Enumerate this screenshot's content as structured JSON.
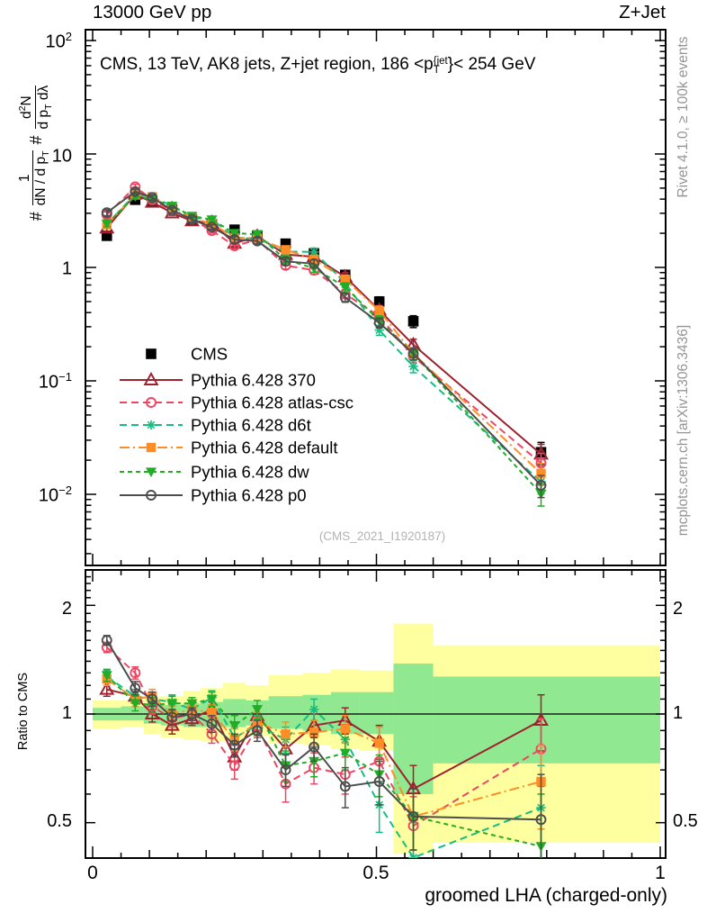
{
  "header": {
    "title_left": "13000 GeV pp",
    "title_right": "Z+Jet"
  },
  "annotation": {
    "prefix": "CMS, 13 TeV, AK8 jets, Z+jet region, 186 <p",
    "sup": "{jet",
    "sub": "T",
    "suffix": "}< 254 GeV"
  },
  "sidebar_right": {
    "top": "Rivet 4.1.0, ≥ 100k events",
    "bottom": "mcplots.cern.ch [arXiv:1306.3436]"
  },
  "watermark": "(CMS_2021_I1920187)",
  "axes": {
    "xlabel": "groomed LHA (charged-only)",
    "ratio_ylabel": "Ratio to CMS",
    "ylabel": {
      "hash1": "#",
      "f1num": "1",
      "f1den_main": "dN / d p",
      "f1den_sub": "T",
      "hash2": "#",
      "f2num_d": "d",
      "f2num_sup": "2",
      "f2num_N": "N",
      "f2den_main": "d p",
      "f2den_sub": "T",
      "f2den_tail": " dλ"
    },
    "x_ticks": [
      {
        "v": 0,
        "label": "0"
      },
      {
        "v": 0.5,
        "label": "0.5"
      },
      {
        "v": 1,
        "label": "1"
      }
    ],
    "y_ticks": [
      {
        "v": 100,
        "base": "10",
        "exp": "2"
      },
      {
        "v": 10,
        "base": "10",
        "exp": ""
      },
      {
        "v": 1,
        "base": "1",
        "exp": ""
      },
      {
        "v": 0.1,
        "base": "10",
        "exp": "−1"
      },
      {
        "v": 0.01,
        "base": "10",
        "exp": "−2"
      }
    ],
    "ratio_ticks": [
      {
        "v": 2,
        "label": "2"
      },
      {
        "v": 1,
        "label": "1"
      },
      {
        "v": 0.5,
        "label": "0.5"
      }
    ]
  },
  "chart_data": {
    "type": "line",
    "xlabel": "groomed LHA (charged-only)",
    "xlim": [
      0,
      1
    ],
    "x": [
      0.025,
      0.075,
      0.105,
      0.14,
      0.175,
      0.21,
      0.25,
      0.29,
      0.34,
      0.39,
      0.445,
      0.505,
      0.565,
      0.79
    ],
    "bin_edges": [
      0,
      0.05,
      0.09,
      0.12,
      0.16,
      0.19,
      0.23,
      0.27,
      0.31,
      0.37,
      0.42,
      0.47,
      0.53,
      0.6,
      1.0
    ],
    "main_panel": {
      "ylog": true,
      "ylim": [
        0.0024,
        124
      ],
      "ylabel": "# 1/(dN/dp_T) # d2N/(dp_T dlambda)",
      "grid": false
    },
    "ratio_panel": {
      "ylog": true,
      "ylim": [
        0.4,
        2.49
      ],
      "ylabel": "Ratio to CMS",
      "bands": {
        "yellow_color": "#feff9e",
        "green_color": "#90e890",
        "yellow_lo": [
          0.91,
          0.92,
          0.88,
          0.86,
          0.85,
          0.84,
          0.84,
          0.87,
          0.83,
          0.82,
          0.8,
          0.79,
          0.41,
          0.44
        ],
        "yellow_hi": [
          1.09,
          1.09,
          1.12,
          1.12,
          1.16,
          1.18,
          1.22,
          1.2,
          1.28,
          1.3,
          1.33,
          1.32,
          1.78,
          1.55
        ],
        "green_lo": [
          0.96,
          0.96,
          0.94,
          0.93,
          0.92,
          0.92,
          0.92,
          0.93,
          0.91,
          0.9,
          0.88,
          0.88,
          0.6,
          0.73
        ],
        "green_hi": [
          1.04,
          1.05,
          1.06,
          1.06,
          1.07,
          1.08,
          1.1,
          1.09,
          1.12,
          1.13,
          1.15,
          1.15,
          1.38,
          1.27
        ]
      }
    },
    "err_frac": [
      0.06,
      0.05,
      0.05,
      0.05,
      0.05,
      0.05,
      0.06,
      0.06,
      0.07,
      0.08,
      0.09,
      0.1,
      0.12,
      0.22
    ],
    "ratio_err": [
      0.05,
      0.05,
      0.05,
      0.05,
      0.04,
      0.05,
      0.06,
      0.06,
      0.07,
      0.07,
      0.08,
      0.09,
      0.1,
      0.17
    ],
    "legend_position": "middle-left",
    "series": [
      {
        "name": "CMS",
        "kind": "data",
        "color": "#000000",
        "line": "none",
        "marker": "square-filled",
        "values": [
          1.9,
          3.95,
          3.75,
          3.25,
          2.65,
          2.4,
          2.15,
          1.9,
          1.62,
          1.33,
          0.86,
          0.5,
          0.335,
          0.0235
        ]
      },
      {
        "name": "Pythia 6.428 370",
        "kind": "mc",
        "color": "#9e2130",
        "line": "solid",
        "marker": "triangle-open",
        "values": [
          2.22,
          4.42,
          3.75,
          3.02,
          2.57,
          2.47,
          1.63,
          1.88,
          1.3,
          1.24,
          0.826,
          0.42,
          0.208,
          0.0226
        ],
        "ratio": [
          1.17,
          1.12,
          1.0,
          0.93,
          0.97,
          1.03,
          0.76,
          0.99,
          0.8,
          0.93,
          0.96,
          0.84,
          0.62,
          0.96
        ]
      },
      {
        "name": "Pythia 6.428 atlas-csc",
        "kind": "mc",
        "color": "#ee4662",
        "line": "dash",
        "marker": "circle-open",
        "values": [
          2.91,
          5.14,
          3.94,
          3.15,
          2.65,
          2.11,
          1.55,
          1.75,
          1.04,
          0.944,
          0.585,
          0.37,
          0.164,
          0.0188
        ],
        "ratio": [
          1.53,
          1.3,
          1.05,
          0.97,
          1.0,
          0.88,
          0.72,
          0.92,
          0.64,
          0.71,
          0.68,
          0.74,
          0.49,
          0.8
        ]
      },
      {
        "name": "Pythia 6.428 d6t",
        "kind": "mc",
        "color": "#17bd80",
        "line": "dash",
        "marker": "asterisk",
        "values": [
          2.41,
          4.42,
          4.13,
          3.51,
          2.73,
          2.66,
          1.85,
          1.77,
          1.38,
          1.37,
          0.731,
          0.28,
          0.134,
          0.0129
        ],
        "ratio": [
          1.27,
          1.12,
          1.1,
          1.08,
          1.03,
          1.11,
          0.86,
          0.93,
          0.85,
          1.03,
          0.85,
          0.56,
          0.4,
          0.55
        ]
      },
      {
        "name": "Pythia 6.428 default",
        "kind": "mc",
        "color": "#ff8d26",
        "line": "dashdot",
        "marker": "square-filled",
        "values": [
          2.38,
          4.35,
          4.2,
          3.25,
          2.73,
          2.42,
          1.83,
          1.81,
          1.43,
          1.18,
          0.783,
          0.415,
          0.174,
          0.0153
        ],
        "ratio": [
          1.25,
          1.1,
          1.12,
          1.0,
          1.03,
          1.01,
          0.85,
          0.95,
          0.88,
          0.89,
          0.91,
          0.83,
          0.52,
          0.65
        ]
      },
      {
        "name": "Pythia 6.428 dw",
        "kind": "mc",
        "color": "#23ac26",
        "line": "dash2",
        "marker": "triangle-down-filled",
        "values": [
          2.43,
          4.23,
          3.98,
          3.48,
          2.84,
          2.64,
          2.0,
          1.96,
          1.17,
          0.984,
          0.671,
          0.34,
          0.174,
          0.0101
        ],
        "ratio": [
          1.28,
          1.07,
          1.06,
          1.07,
          1.07,
          1.1,
          0.93,
          1.03,
          0.72,
          0.74,
          0.78,
          0.68,
          0.52,
          0.43
        ]
      },
      {
        "name": "Pythia 6.428 p0",
        "kind": "mc",
        "color": "#4d4d4d",
        "line": "solid",
        "marker": "circle-open",
        "values": [
          3.04,
          4.66,
          4.13,
          3.19,
          2.65,
          2.26,
          1.76,
          1.71,
          1.13,
          1.08,
          0.542,
          0.325,
          0.174,
          0.012
        ],
        "ratio": [
          1.6,
          1.18,
          1.1,
          0.98,
          1.0,
          0.94,
          0.82,
          0.9,
          0.7,
          0.81,
          0.63,
          0.65,
          0.52,
          0.51
        ]
      }
    ]
  }
}
